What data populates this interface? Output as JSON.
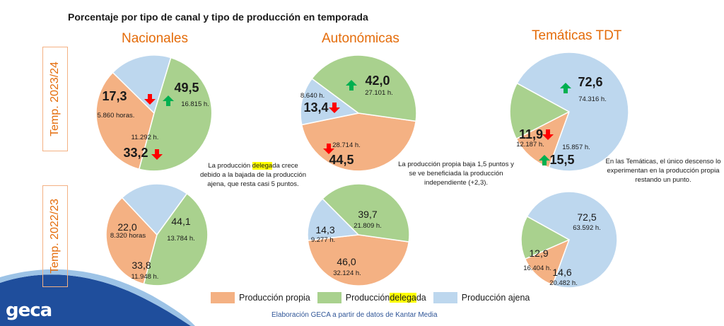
{
  "title": "Porcentaje por tipo de canal y tipo de producción en temporada",
  "columns": [
    "Nacionales",
    "Autonómicas",
    "Temáticas TDT"
  ],
  "rows": [
    "Temp. 2023/24",
    "Temp. 2022/23"
  ],
  "colors": {
    "propia": "#f4b183",
    "delegada": "#a9d18e",
    "ajena": "#bdd7ee",
    "up": "#00b050",
    "down": "#ff0000",
    "accent": "#e46c0a"
  },
  "legend": {
    "propia": "Producción propia",
    "delegada_pre": "Producción ",
    "delegada_hl": "delega",
    "delegada_post": "da",
    "ajena": "Producción ajena"
  },
  "notes": {
    "nacionales": {
      "pre": "La producción ",
      "hl": "delega",
      "post": "da crece debido a la bajada de la producción ajena, que resta casi 5 puntos."
    },
    "autonomicas": "La producción propia baja 1,5 puntos y se ve beneficiada la producción independiente (+2,3).",
    "tematicas": "En las Temáticas, el único descenso lo experimentan en la producción propia restando un punto."
  },
  "source": "Elaboración GECA a partir de datos de Kantar Media",
  "logo": "geca",
  "chart_data": [
    {
      "type": "pie",
      "title": "Nacionales",
      "subtitle": "Temp. 2023/24",
      "categories": [
        "Producción propia",
        "Producción delegada",
        "Producción ajena"
      ],
      "values": [
        33.2,
        49.5,
        17.3
      ],
      "value_labels": [
        "33,2",
        "49,5",
        "17,3"
      ],
      "hours": [
        "11.292 h.",
        "16.815 h.",
        "5.860 horas."
      ],
      "trend": [
        "down",
        "up",
        "down"
      ]
    },
    {
      "type": "pie",
      "title": "Autonómicas",
      "subtitle": "Temp. 2023/24",
      "categories": [
        "Producción propia",
        "Producción delegada",
        "Producción ajena"
      ],
      "values": [
        44.5,
        42.0,
        13.4
      ],
      "value_labels": [
        "44,5",
        "42,0",
        "13,4"
      ],
      "hours": [
        "28.714 h.",
        "27.101 h.",
        "8.640 h."
      ],
      "trend": [
        "down",
        "up",
        "down"
      ]
    },
    {
      "type": "pie",
      "title": "Temáticas TDT",
      "subtitle": "Temp. 2023/24",
      "categories": [
        "Producción propia",
        "Producción delegada",
        "Producción ajena"
      ],
      "values": [
        11.9,
        15.5,
        72.6
      ],
      "value_labels": [
        "11,9",
        "15,5",
        "72,6"
      ],
      "hours": [
        "12.187 h.",
        "15.857 h.",
        "74.316 h."
      ],
      "trend": [
        "down",
        "up",
        "up"
      ]
    },
    {
      "type": "pie",
      "title": "Nacionales",
      "subtitle": "Temp. 2022/23",
      "categories": [
        "Producción propia",
        "Producción delegada",
        "Producción ajena"
      ],
      "values": [
        33.8,
        44.1,
        22.0
      ],
      "value_labels": [
        "33,8",
        "44,1",
        "22,0"
      ],
      "hours": [
        "11.948 h.",
        "13.784 h.",
        "8.320 horas"
      ]
    },
    {
      "type": "pie",
      "title": "Autonómicas",
      "subtitle": "Temp. 2022/23",
      "categories": [
        "Producción propia",
        "Producción delegada",
        "Producción ajena"
      ],
      "values": [
        46.0,
        39.7,
        14.3
      ],
      "value_labels": [
        "46,0",
        "39,7",
        "14,3"
      ],
      "hours": [
        "32.124 h.",
        "21.809 h.",
        "9.277 h."
      ]
    },
    {
      "type": "pie",
      "title": "Temáticas TDT",
      "subtitle": "Temp. 2022/23",
      "categories": [
        "Producción propia",
        "Producción delegada",
        "Producción ajena"
      ],
      "values": [
        12.9,
        14.6,
        72.5
      ],
      "value_labels": [
        "12,9",
        "14,6",
        "72,5"
      ],
      "hours": [
        "16.404 h.",
        "20.482 h.",
        "63.592 h."
      ]
    }
  ]
}
